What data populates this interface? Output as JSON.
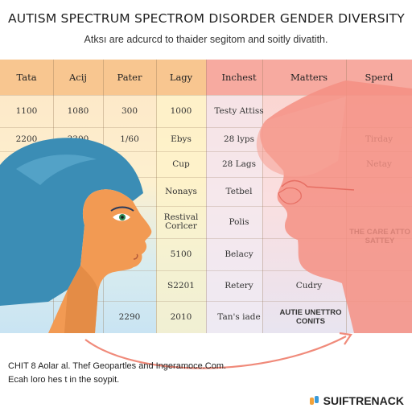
{
  "title": "AUTISM SPECTRUM SPECTROM DISORDER GENDER DIVERSITY",
  "subtitle": "Atksı are adcurcd to thaider segitom and soitly divatith.",
  "table": {
    "headers": [
      "Tata",
      "Acij",
      "Pater",
      "Lagy",
      "Inchest",
      "Matters",
      "Sperd"
    ],
    "rows": [
      [
        "1100",
        "1080",
        "300",
        "1000",
        "Testy Attiss",
        "",
        ""
      ],
      [
        "2200",
        "3300",
        "1/60",
        "Ebys",
        "28 lyps",
        "",
        "Tirday"
      ],
      [
        "",
        "",
        "",
        "Cup",
        "28 Lags",
        "",
        "Netay"
      ],
      [
        "",
        "",
        "",
        "Nonays",
        "Tetbel",
        "",
        ""
      ],
      [
        "",
        "",
        "",
        "Restival Corlcer",
        "Polis",
        "",
        "THE CARE ATTO SATTEY"
      ],
      [
        "",
        "",
        "",
        "5100",
        "Belacy",
        "",
        ""
      ],
      [
        "",
        "",
        "",
        "S2201",
        "Retery",
        "Cudry",
        ""
      ],
      [
        "",
        "",
        "2290",
        "2010",
        "Tan's iade",
        "AUTIE UNETTRO CONITS",
        ""
      ]
    ]
  },
  "footer": {
    "line1": "CHIT 8 Aolar al. Thef Geopartles and Ingeramoce.Com.",
    "line2": "Ecah loro hes t in the soypit."
  },
  "brand": {
    "name": "SUIFTRENACK"
  },
  "colors": {
    "orange_header": "#f7c28e",
    "peach": "#fbe0c0",
    "yellow": "#fdf0c4",
    "blue_light": "#cde7f2",
    "pink": "#f9b7b0",
    "salmon": "#f48e82"
  }
}
